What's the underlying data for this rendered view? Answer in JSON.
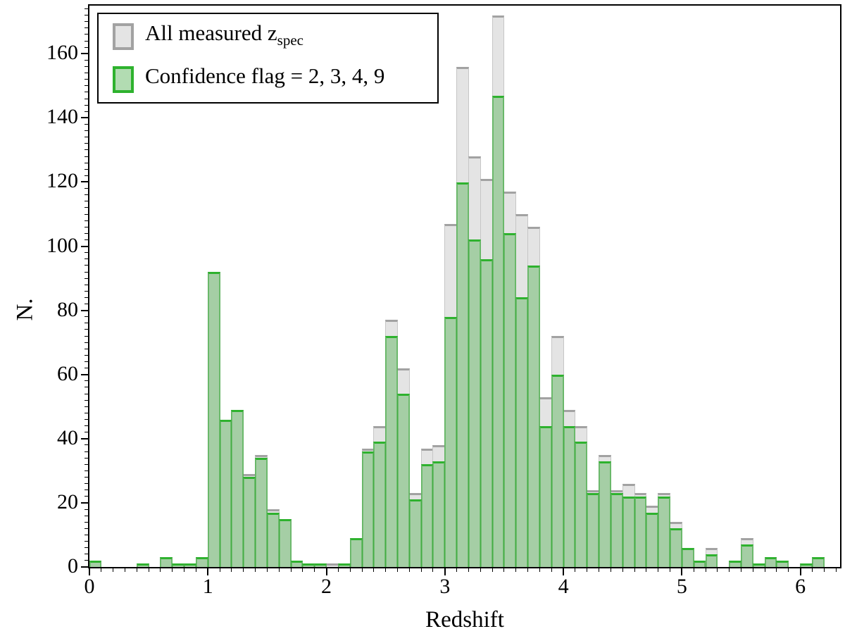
{
  "figure": {
    "background": "#ffffff"
  },
  "axes": {
    "xlabel": "Redshift",
    "ylabel": "N.",
    "x_tick_labels": [
      "0",
      "1",
      "2",
      "3",
      "4",
      "5",
      "6"
    ],
    "y_tick_labels": [
      "0",
      "20",
      "40",
      "60",
      "80",
      "100",
      "120",
      "140",
      "160"
    ]
  },
  "legend": {
    "items": [
      {
        "label_main": "All measured z",
        "label_sub": "spec",
        "fill": "#e4e4e4",
        "edge": "#a2a2a2"
      },
      {
        "label_main": "Confidence flag = 2, 3, 4, 9",
        "label_sub": "",
        "fill": "#b2dcb2",
        "edge": "#2eb22e"
      }
    ]
  },
  "chart_data": {
    "type": "bar",
    "subtype": "step-filled-histogram",
    "title": "",
    "xlabel": "Redshift",
    "ylabel": "N.",
    "xlim": [
      0,
      6.335
    ],
    "ylim": [
      0,
      175
    ],
    "grid": false,
    "legend_position": "upper-left",
    "bin_width": 0.1,
    "bin_starts": [
      0.0,
      0.1,
      0.2,
      0.3,
      0.4,
      0.5,
      0.6,
      0.7,
      0.8,
      0.9,
      1.0,
      1.1,
      1.2,
      1.3,
      1.4,
      1.5,
      1.6,
      1.7,
      1.8,
      1.9,
      2.0,
      2.1,
      2.2,
      2.3,
      2.4,
      2.5,
      2.6,
      2.7,
      2.8,
      2.9,
      3.0,
      3.1,
      3.2,
      3.3,
      3.4,
      3.5,
      3.6,
      3.7,
      3.8,
      3.9,
      4.0,
      4.1,
      4.2,
      4.3,
      4.4,
      4.5,
      4.6,
      4.7,
      4.8,
      4.9,
      5.0,
      5.1,
      5.2,
      5.3,
      5.4,
      5.5,
      5.6,
      5.7,
      5.8,
      5.9,
      6.0,
      6.1,
      6.2
    ],
    "series": [
      {
        "name": "All measured z_spec",
        "fill": "#e4e4e4",
        "edge": "#a2a2a2",
        "values": [
          2,
          0,
          0,
          0,
          1,
          0,
          3,
          1,
          1,
          3,
          92,
          46,
          49,
          29,
          35,
          18,
          15,
          2,
          1,
          1,
          1,
          1,
          9,
          37,
          44,
          77,
          62,
          23,
          37,
          38,
          107,
          156,
          128,
          121,
          172,
          117,
          110,
          106,
          53,
          72,
          49,
          44,
          24,
          35,
          24,
          26,
          23,
          19,
          23,
          14,
          6,
          2,
          6,
          0,
          2,
          9,
          1,
          3,
          2,
          0,
          1,
          3,
          0
        ]
      },
      {
        "name": "Confidence flag = 2, 3, 4, 9",
        "fill": "#acdaac",
        "edge": "#2eb22e",
        "values": [
          2,
          0,
          0,
          0,
          1,
          0,
          3,
          1,
          1,
          3,
          92,
          46,
          49,
          28,
          34,
          17,
          15,
          2,
          1,
          1,
          0,
          1,
          9,
          36,
          39,
          72,
          54,
          21,
          32,
          33,
          78,
          120,
          102,
          96,
          147,
          104,
          84,
          94,
          44,
          60,
          44,
          39,
          23,
          33,
          23,
          22,
          22,
          17,
          22,
          12,
          6,
          2,
          4,
          0,
          2,
          7,
          1,
          3,
          2,
          0,
          1,
          3,
          0
        ]
      }
    ],
    "x_ticks": [
      0,
      1,
      2,
      3,
      4,
      5,
      6
    ],
    "y_ticks": [
      0,
      20,
      40,
      60,
      80,
      100,
      120,
      140,
      160
    ],
    "x_minor_step": 0.1,
    "y_minor_step": 2
  }
}
